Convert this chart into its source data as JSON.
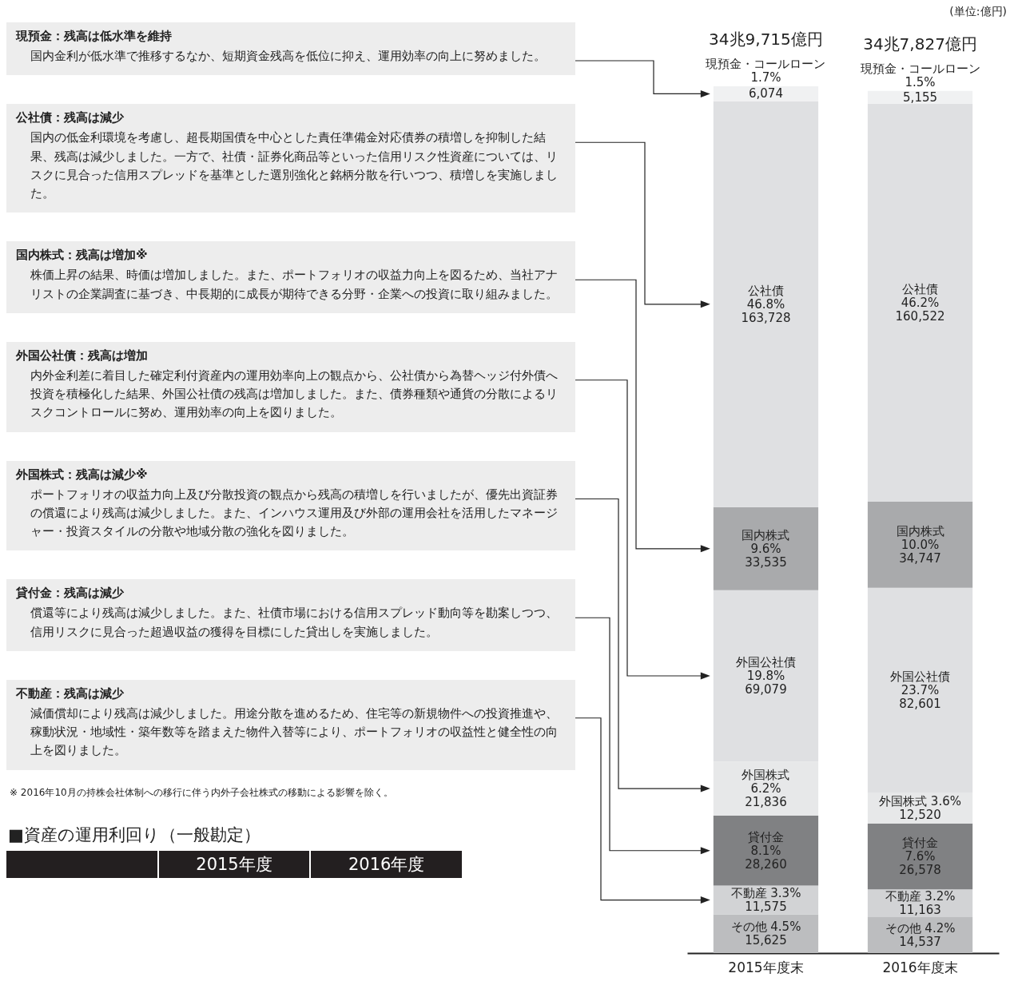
{
  "chart_data": {
    "type": "bar",
    "stacked": true,
    "subtitle": "(単位:億円)",
    "categories": [
      "2015年度末",
      "2016年度末"
    ],
    "totals": [
      "34兆9,715億円",
      "34兆7,827億円"
    ],
    "series": [
      {
        "name": "その他",
        "color": "#bcbdbf",
        "values": [
          15625,
          14537
        ],
        "value_labels": [
          "4.5%\n15,625",
          "4.2%\n14,537"
        ]
      },
      {
        "name": "不動産",
        "color": "#d2d3d5",
        "values": [
          11575,
          11163
        ],
        "value_labels": [
          "3.3%\n11,575",
          "3.2%\n11,163"
        ]
      },
      {
        "name": "貸付金",
        "color": "#808183",
        "values": [
          28260,
          26578
        ],
        "value_labels": [
          "8.1%\n28,260",
          "7.6%\n26,578"
        ]
      },
      {
        "name": "外国株式",
        "color": "#e7e8e9",
        "values": [
          21836,
          12520
        ],
        "value_labels": [
          "6.2%\n21,836",
          "3.6%\n12,520"
        ]
      },
      {
        "name": "外国公社債",
        "color": "#dfe0e2",
        "values": [
          69079,
          82601
        ],
        "value_labels": [
          "19.8%\n69,079",
          "23.7%\n82,601"
        ]
      },
      {
        "name": "国内株式",
        "color": "#a9aaac",
        "values": [
          33535,
          34747
        ],
        "value_labels": [
          "9.6%\n33,535",
          "10.0%\n34,747"
        ]
      },
      {
        "name": "公社債",
        "color": "#dfe0e2",
        "values": [
          163728,
          160522
        ],
        "value_labels": [
          "46.8%\n163,728",
          "46.2%\n160,522"
        ]
      },
      {
        "name": "現預金・コールローン",
        "color": "#f0f1f2",
        "values": [
          6074,
          5155
        ],
        "value_labels": [
          "1.7%\n6,074",
          "1.5%\n5,155"
        ]
      }
    ],
    "annotations": [
      "現預金：残高は低水準を維持",
      "国内金利が低水準で推移するなか、短期資金残高を低位に抑え、運用効率の向上に努めました。",
      "公社債：残高は減少",
      "国内の低金利環境を考慮し、超長期国債を中心とした責任準備金対応債券の積増しを抑制した結果、残高は減少しました。一方で、社債・証券化商品等といった信用リスク性資産については、リスクに見合った信用スプレッドを基準とした選別強化と銘柄分散を行いつつ、積増しを実施しました。",
      "国内株式：残高は増加※",
      "株価上昇の結果、時価は増加しました。また、ポートフォリオの収益力向上を図るため、当社アナリストの企業調査に基づき、中長期的に成長が期待できる分野・企業への投資に取り組みました。",
      "外国公社債：残高は増加",
      "内外金利差に着目した確定利付資産内の運用効率向上の観点から、公社債から為替ヘッジ付外債へ投資を積極化した結果、外国公社債の残高は増加しました。また、債券種類や通貨の分散によるリスクコントロールに努め、運用効率の向上を図りました。",
      "外国株式：残高は減少※",
      "ポートフォリオの収益力向上及び分散投資の観点から残高の積増しを行いましたが、優先出資証券の償還により残高は減少しました。また、インハウス運用及び外部の運用会社を活用したマネージャー・投資スタイルの分散や地域分散の強化を図りました。",
      "貸付金：残高は減少",
      "償還等により残高は減少しました。また、社債市場における信用スプレッド動向等を勘案しつつ、信用リスクに見合った超過収益の獲得を目標にした貸出しを実施しました。",
      "不動産：残高は減少",
      "減価償却により残高は減少しました。用途分散を進めるため、住宅等の新規物件への投資推進や、稼動状況・地域性・築年数等を踏まえた物件入替等により、ポートフォリオの収益性と健全性の向上を図りました。",
      "※ 2016年10月の持株会社体制への移行に伴う内外子会社株式の移動による影響を除く。",
      "■資産の運用利回り（一般勘定）",
      "2015年度",
      "2016年度"
    ]
  }
}
